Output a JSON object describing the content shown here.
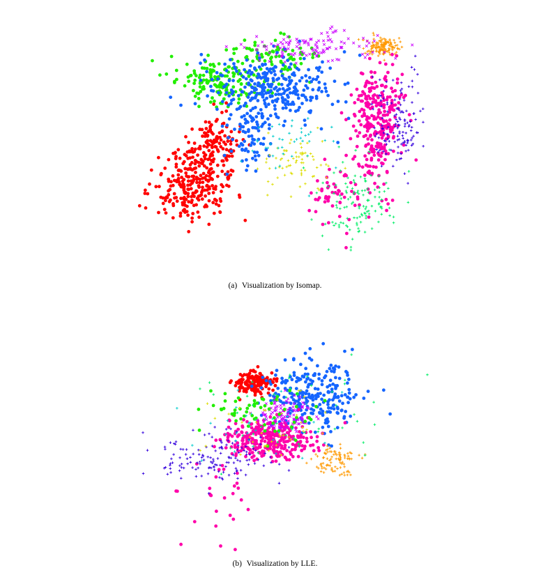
{
  "captions": {
    "a_label": "(a)",
    "a_text": "Visualization by Isomap.",
    "b_label": "(b)",
    "b_text": "Visualization by LLE."
  },
  "chart_data": [
    {
      "type": "scatter",
      "title": "",
      "xlabel": "",
      "ylabel": "",
      "axes_visible": false,
      "grid": false,
      "legend": "none",
      "xlim": [
        0,
        100
      ],
      "ylim": [
        0,
        100
      ],
      "series": [
        {
          "color": "#ff0000",
          "marker": "circle",
          "clusters": [
            {
              "cx": 20,
              "cy": 36,
              "sx": 6,
              "sy": 7,
              "n": 260
            },
            {
              "cx": 28,
              "cy": 53,
              "sx": 4,
              "sy": 5,
              "n": 120
            }
          ]
        },
        {
          "color": "#22ee00",
          "marker": "circle",
          "clusters": [
            {
              "cx": 30,
              "cy": 76,
              "sx": 7,
              "sy": 5,
              "n": 160
            },
            {
              "cx": 46,
              "cy": 86,
              "sx": 7,
              "sy": 4,
              "n": 80
            }
          ]
        },
        {
          "color": "#1565ff",
          "marker": "circle",
          "clusters": [
            {
              "cx": 46,
              "cy": 74,
              "sx": 10,
              "sy": 7,
              "n": 300
            },
            {
              "cx": 38,
              "cy": 56,
              "sx": 4,
              "sy": 8,
              "n": 80
            }
          ]
        },
        {
          "color": "#ff9900",
          "marker": "plus",
          "clusters": [
            {
              "cx": 80,
              "cy": 90,
              "sx": 2.5,
              "sy": 2,
              "n": 140
            }
          ]
        },
        {
          "color": "#ff00aa",
          "marker": "circle",
          "clusters": [
            {
              "cx": 79,
              "cy": 62,
              "sx": 4,
              "sy": 11,
              "n": 280
            },
            {
              "cx": 66,
              "cy": 33,
              "sx": 5,
              "sy": 6,
              "n": 60
            }
          ]
        },
        {
          "color": "#3300dd",
          "marker": "plus",
          "clusters": [
            {
              "cx": 85,
              "cy": 60,
              "sx": 4,
              "sy": 9,
              "n": 130
            }
          ]
        },
        {
          "color": "#00ee66",
          "marker": "plus",
          "clusters": [
            {
              "cx": 72,
              "cy": 30,
              "sx": 6,
              "sy": 8,
              "n": 120
            }
          ]
        },
        {
          "color": "#dddd00",
          "marker": "plus",
          "clusters": [
            {
              "cx": 53,
              "cy": 44,
              "sx": 6,
              "sy": 6,
              "n": 70
            }
          ]
        },
        {
          "color": "#cc00ff",
          "marker": "cross",
          "clusters": [
            {
              "cx": 57,
              "cy": 90,
              "sx": 10,
              "sy": 3,
              "n": 120
            }
          ]
        },
        {
          "color": "#00cccc",
          "marker": "plus",
          "clusters": [
            {
              "cx": 52,
              "cy": 52,
              "sx": 8,
              "sy": 6,
              "n": 40
            }
          ]
        }
      ]
    },
    {
      "type": "scatter",
      "title": "",
      "xlabel": "",
      "ylabel": "",
      "axes_visible": false,
      "grid": false,
      "legend": "none",
      "xlim": [
        0,
        100
      ],
      "ylim": [
        0,
        100
      ],
      "series": [
        {
          "color": "#ff0000",
          "marker": "circle",
          "clusters": [
            {
              "cx": 40,
              "cy": 68,
              "sx": 3,
              "sy": 2,
              "n": 160
            }
          ]
        },
        {
          "color": "#1565ff",
          "marker": "circle",
          "clusters": [
            {
              "cx": 58,
              "cy": 63,
              "sx": 8,
              "sy": 7,
              "n": 260
            }
          ]
        },
        {
          "color": "#ff00aa",
          "marker": "circle",
          "clusters": [
            {
              "cx": 45,
              "cy": 46,
              "sx": 7,
              "sy": 4,
              "n": 320
            },
            {
              "cx": 28,
              "cy": 22,
              "sx": 6,
              "sy": 8,
              "n": 25
            }
          ]
        },
        {
          "color": "#3300dd",
          "marker": "plus",
          "clusters": [
            {
              "cx": 28,
              "cy": 38,
              "sx": 9,
              "sy": 5,
              "n": 140
            }
          ]
        },
        {
          "color": "#ff9900",
          "marker": "plus",
          "clusters": [
            {
              "cx": 65,
              "cy": 37,
              "sx": 4,
              "sy": 3,
              "n": 90
            }
          ]
        },
        {
          "color": "#cc00ff",
          "marker": "cross",
          "clusters": [
            {
              "cx": 50,
              "cy": 55,
              "sx": 4,
              "sy": 4,
              "n": 110
            }
          ]
        },
        {
          "color": "#22ee00",
          "marker": "circle",
          "clusters": [
            {
              "cx": 42,
              "cy": 55,
              "sx": 8,
              "sy": 6,
              "n": 60
            }
          ]
        },
        {
          "color": "#00ee66",
          "marker": "plus",
          "clusters": [
            {
              "cx": 52,
              "cy": 58,
              "sx": 14,
              "sy": 12,
              "n": 50
            }
          ]
        },
        {
          "color": "#dddd00",
          "marker": "plus",
          "clusters": [
            {
              "cx": 46,
              "cy": 52,
              "sx": 8,
              "sy": 7,
              "n": 40
            }
          ]
        },
        {
          "color": "#00cccc",
          "marker": "plus",
          "clusters": [
            {
              "cx": 40,
              "cy": 50,
              "sx": 10,
              "sy": 8,
              "n": 30
            }
          ]
        }
      ]
    }
  ]
}
